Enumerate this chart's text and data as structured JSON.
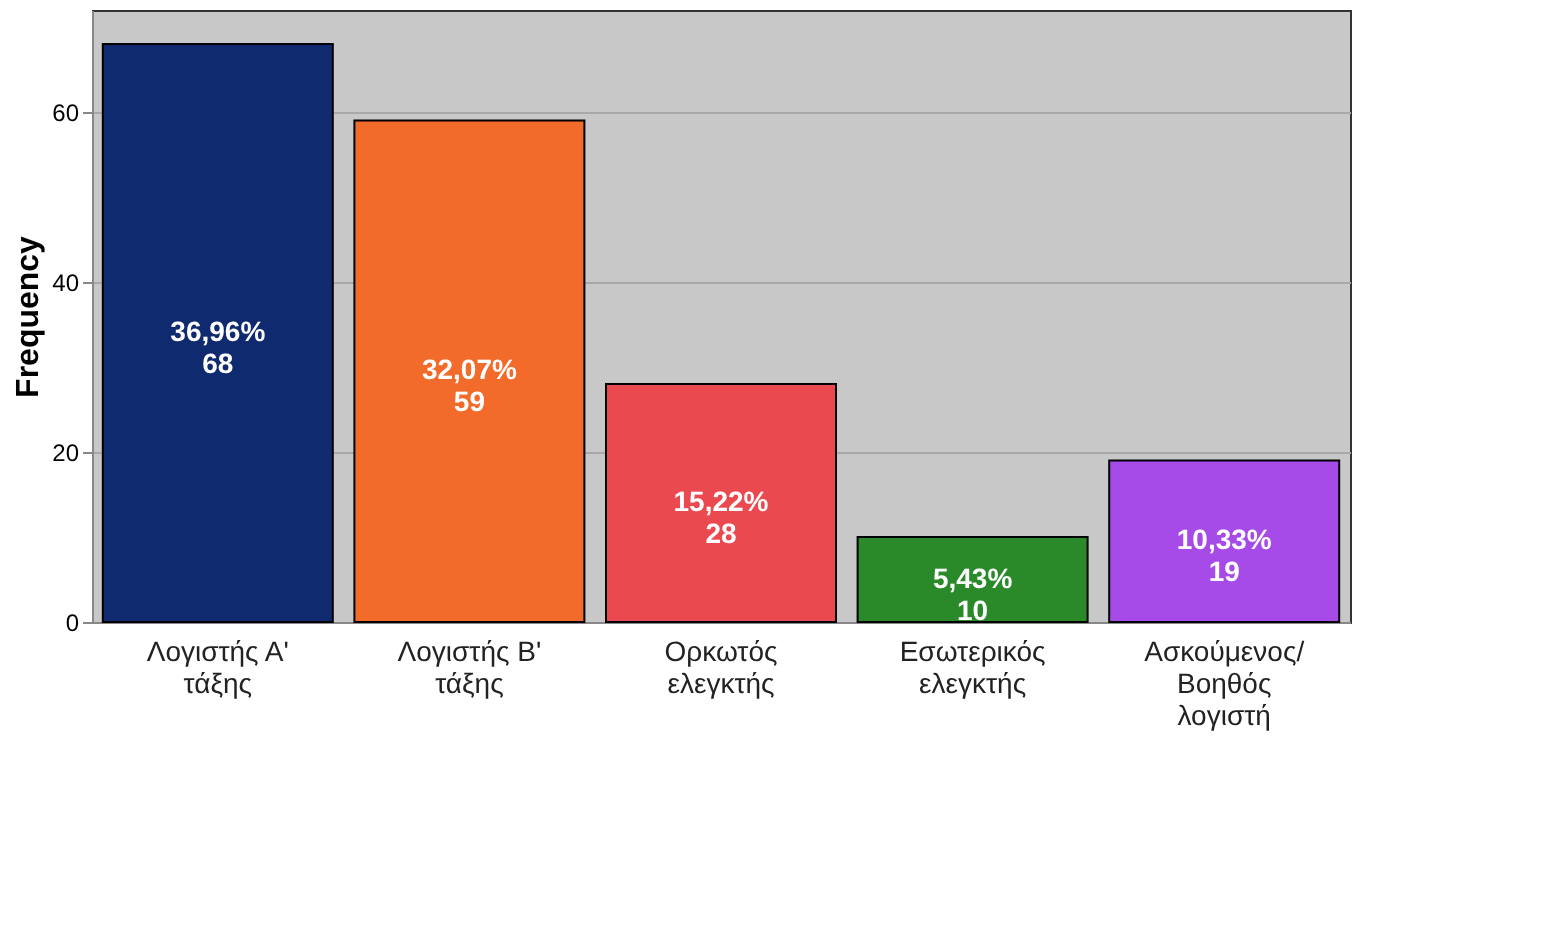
{
  "chart_data": {
    "type": "bar",
    "ylabel": "Frequency",
    "categories": [
      "Λογιστής Α'\nτάξης",
      "Λογιστής Β'\nτάξης",
      "Ορκωτός\nελεγκτής",
      "Εσωτερικός\nελεγκτής",
      "Ασκούμενος/\nΒοηθός\nλογιστή"
    ],
    "values": [
      68,
      59,
      28,
      10,
      19
    ],
    "colors": [
      "#0f2a6e",
      "#f26b2a",
      "#ea4a4f",
      "#2a8a2a",
      "#a64ae8"
    ],
    "value_labels": [
      "36,96%\n68",
      "32,07%\n59",
      "15,22%\n28",
      "5,43%\n10",
      "10,33%\n19"
    ],
    "ylim": [
      0,
      72
    ],
    "yticks": [
      0,
      20,
      40,
      60
    ],
    "grid": "y"
  }
}
